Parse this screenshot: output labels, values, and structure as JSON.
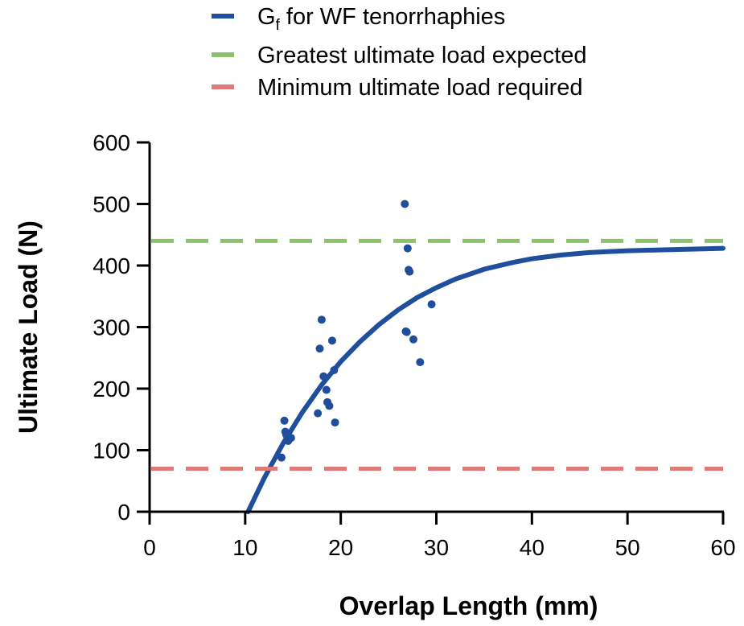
{
  "chart_data": {
    "type": "scatter",
    "xlabel": "Overlap Length (mm)",
    "ylabel": "Ultimate Load (N)",
    "xlim": [
      0,
      60
    ],
    "ylim": [
      0,
      600
    ],
    "x_ticks": [
      0,
      10,
      20,
      30,
      40,
      50,
      60
    ],
    "y_ticks": [
      0,
      100,
      200,
      300,
      400,
      500,
      600
    ],
    "grid": false,
    "legend_position": "top-center",
    "legend": [
      {
        "key": "fit",
        "base": "G",
        "sub": "f",
        "rest": " for WF tenorrhaphies",
        "color": "#1f4e9c",
        "style": "solid"
      },
      {
        "key": "greatest",
        "label": "Greatest ultimate load expected",
        "color": "#8bc36a",
        "style": "dashed"
      },
      {
        "key": "minimum",
        "label": "Minimum ultimate load required",
        "color": "#e07a78",
        "style": "dashed"
      }
    ],
    "series": [
      {
        "type": "line",
        "color": "#1f4e9c",
        "x": [
          10.3,
          12,
          14,
          16,
          18,
          20,
          22,
          24,
          26,
          28,
          30,
          32,
          35,
          38,
          40,
          43,
          46,
          50,
          55,
          60
        ],
        "y": [
          0,
          55,
          112,
          162,
          206,
          244,
          276,
          304,
          328,
          348,
          364,
          378,
          394,
          405,
          411,
          417,
          421,
          424,
          426,
          428
        ]
      },
      {
        "type": "hline",
        "y": 440,
        "color": "#8bc36a",
        "style": "dashed"
      },
      {
        "type": "hline",
        "y": 70,
        "color": "#e07a78",
        "style": "dashed"
      },
      {
        "type": "scatter",
        "color": "#1f4e9c",
        "x": [
          13.8,
          14.1,
          14.3,
          14.5,
          14.8,
          14.2,
          17.6,
          17.8,
          18.0,
          18.2,
          18.5,
          18.6,
          18.8,
          19.1,
          19.3,
          19.4,
          26.7,
          26.8,
          26.9,
          27.0,
          27.1,
          27.2,
          27.6,
          28.3,
          29.5
        ],
        "y": [
          88,
          148,
          125,
          115,
          120,
          130,
          160,
          265,
          312,
          220,
          198,
          178,
          172,
          278,
          230,
          145,
          500,
          293,
          292,
          428,
          393,
          390,
          280,
          243,
          337
        ]
      }
    ]
  }
}
